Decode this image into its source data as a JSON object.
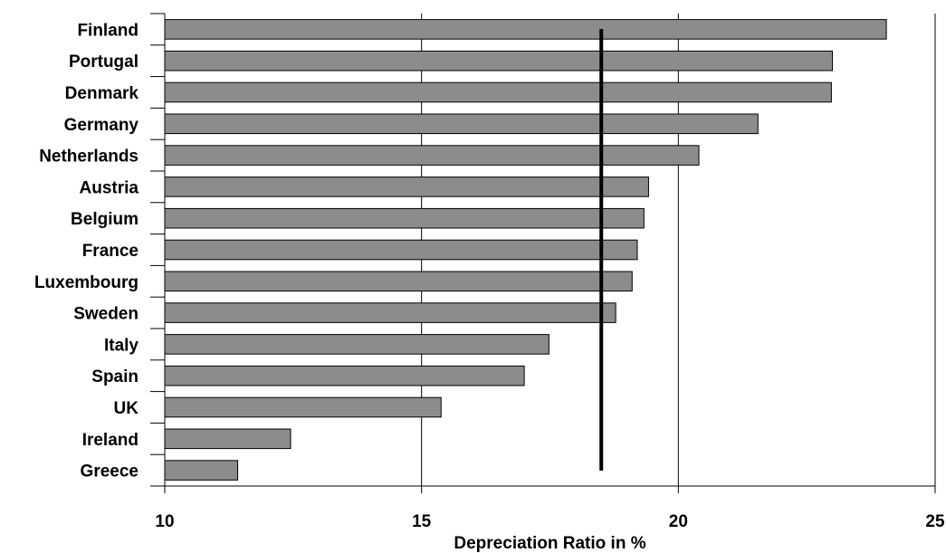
{
  "chart_data": {
    "type": "bar",
    "orientation": "horizontal",
    "categories": [
      "Finland",
      "Portugal",
      "Denmark",
      "Germany",
      "Netherlands",
      "Austria",
      "Belgium",
      "France",
      "Luxembourg",
      "Sweden",
      "Italy",
      "Spain",
      "UK",
      "Ireland",
      "Greece"
    ],
    "values": [
      24.05,
      23.0,
      22.98,
      21.55,
      20.4,
      19.42,
      19.33,
      19.2,
      19.1,
      18.78,
      17.48,
      17.0,
      15.38,
      12.45,
      11.42
    ],
    "xlabel": "Depreciation Ratio in %",
    "xlim": [
      10,
      25
    ],
    "xticks": [
      10,
      15,
      20,
      25
    ],
    "reference_line": 18.5,
    "grid": "vertical",
    "colors": {
      "bar_fill": "#8c8c8c",
      "bar_stroke": "#000000",
      "reference_line": "#000000",
      "grid": "#000000"
    }
  }
}
